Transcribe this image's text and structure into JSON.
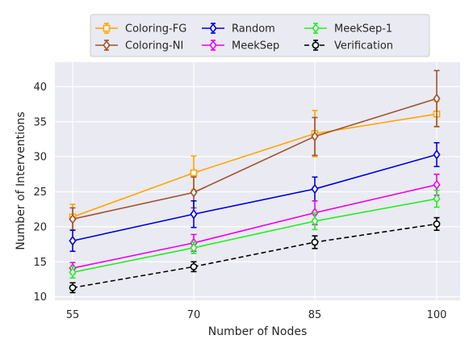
{
  "chart_data": {
    "type": "line",
    "title": "",
    "xlabel": "Number of Nodes",
    "ylabel": "Number of Interventions",
    "x": [
      55,
      70,
      85,
      100
    ],
    "xticks": [
      "55",
      "70",
      "85",
      "100"
    ],
    "yticks": [
      "10",
      "15",
      "20",
      "25",
      "30",
      "35",
      "40"
    ],
    "ylim": [
      9.5,
      43.5
    ],
    "grid": true,
    "legend_position": "top",
    "series": [
      {
        "name": "Coloring-FG",
        "color": "#ffa500",
        "marker": "square",
        "dashed": false,
        "values": [
          21.4,
          27.7,
          33.3,
          36.1
        ],
        "errors": [
          1.8,
          2.4,
          3.3,
          1.8
        ]
      },
      {
        "name": "Coloring-NI",
        "color": "#a0522d",
        "marker": "diamond",
        "dashed": false,
        "values": [
          21.1,
          24.9,
          32.9,
          38.3
        ],
        "errors": [
          1.6,
          2.2,
          2.7,
          4.0
        ]
      },
      {
        "name": "Random",
        "color": "#0000e0",
        "marker": "diamond",
        "dashed": false,
        "values": [
          18.0,
          21.8,
          25.4,
          30.3
        ],
        "errors": [
          1.5,
          1.9,
          1.7,
          1.7
        ]
      },
      {
        "name": "MeekSep",
        "color": "#ee00ee",
        "marker": "diamond",
        "dashed": false,
        "values": [
          14.1,
          17.7,
          22.0,
          26.0
        ],
        "errors": [
          0.8,
          1.2,
          1.7,
          1.5
        ]
      },
      {
        "name": "MeekSep-1",
        "color": "#22ee22",
        "marker": "diamond",
        "dashed": false,
        "values": [
          13.5,
          17.0,
          20.8,
          24.0
        ],
        "errors": [
          0.8,
          0.8,
          1.2,
          1.2
        ]
      },
      {
        "name": "Verification",
        "color": "#000000",
        "marker": "circle",
        "dashed": true,
        "values": [
          11.3,
          14.3,
          17.8,
          20.4
        ],
        "errors": [
          0.7,
          0.7,
          0.9,
          0.9
        ]
      }
    ]
  }
}
